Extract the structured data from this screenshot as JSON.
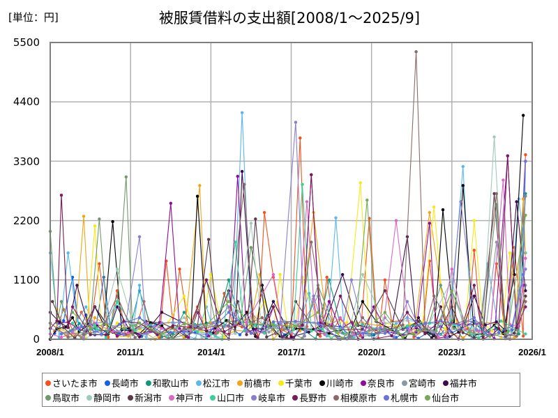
{
  "header": {
    "unit_label": "[単位：円]",
    "title": "被服賃借料の支出額[2008/1～2025/9]"
  },
  "axes": {
    "y_ticks": [
      "5500",
      "4400",
      "3300",
      "2200",
      "1100",
      "0"
    ],
    "x_ticks": [
      "2008/1",
      "2011/1",
      "2014/1",
      "2017/1",
      "2020/1",
      "2023/1",
      "2026/1"
    ]
  },
  "legend": {
    "row1": [
      {
        "label": "さいたま市",
        "color": "#f4511e"
      },
      {
        "label": "長崎市",
        "color": "#1a5fe0"
      },
      {
        "label": "和歌山市",
        "color": "#12997a"
      },
      {
        "label": "松江市",
        "color": "#5bb8ef"
      },
      {
        "label": "前橋市",
        "color": "#f2a516"
      },
      {
        "label": "千葉市",
        "color": "#f7e81a"
      },
      {
        "label": "川崎市",
        "color": "#000000"
      },
      {
        "label": "奈良市",
        "color": "#8f0a9a"
      },
      {
        "label": "宮崎市",
        "color": "#8c98a6"
      },
      {
        "label": "福井市",
        "color": "#3b0a4a"
      }
    ],
    "row2": [
      {
        "label": "鳥取市",
        "color": "#6f9a6a"
      },
      {
        "label": "静岡市",
        "color": "#9fcab8"
      },
      {
        "label": "新潟市",
        "color": "#5a3a4a"
      },
      {
        "label": "神戸市",
        "color": "#d86ac6"
      },
      {
        "label": "山口市",
        "color": "#3ccf98"
      },
      {
        "label": "岐阜市",
        "color": "#8a7ed0"
      },
      {
        "label": "長野市",
        "color": "#7a1a5a"
      },
      {
        "label": "相模原市",
        "color": "#8c6a6a"
      },
      {
        "label": "札幌市",
        "color": "#6a72dc"
      },
      {
        "label": "仙台市",
        "color": "#78aa56"
      }
    ]
  },
  "chart_data": {
    "type": "line",
    "title": "被服賃借料の支出額[2008/1～2025/9]",
    "xlabel": "",
    "ylabel": "[単位：円]",
    "ylim": [
      0,
      5500
    ],
    "y_ticks": [
      0,
      1100,
      2200,
      3300,
      4400,
      5500
    ],
    "x_range": [
      "2008/1",
      "2026/1"
    ],
    "x_ticks": [
      "2008/1",
      "2011/1",
      "2014/1",
      "2017/1",
      "2020/1",
      "2023/1",
      "2026/1"
    ],
    "grid": true,
    "legend_position": "bottom",
    "note": "Monthly series per city; values estimated from pixel positions. Points listed as [month_index_from_2008/1, value]. Unlisted months are low (roughly 0–400).",
    "series": [
      {
        "name": "さいたま市",
        "color": "#f4511e",
        "points": [
          [
            2,
            150
          ],
          [
            6,
            550
          ],
          [
            14,
            500
          ],
          [
            22,
            1400
          ],
          [
            30,
            900
          ],
          [
            42,
            700
          ],
          [
            52,
            1450
          ],
          [
            58,
            1300
          ],
          [
            66,
            600
          ],
          [
            78,
            850
          ],
          [
            90,
            700
          ],
          [
            96,
            2350
          ],
          [
            100,
            1150
          ],
          [
            112,
            3730
          ],
          [
            118,
            750
          ],
          [
            124,
            1150
          ],
          [
            130,
            380
          ],
          [
            143,
            2240
          ],
          [
            150,
            1100
          ],
          [
            160,
            400
          ],
          [
            170,
            1450
          ],
          [
            180,
            900
          ],
          [
            190,
            1650
          ],
          [
            200,
            1400
          ],
          [
            208,
            1700
          ],
          [
            212,
            60
          ],
          [
            213,
            3420
          ],
          [
            212,
            2600
          ]
        ]
      },
      {
        "name": "長崎市",
        "color": "#1a5fe0",
        "points": [
          [
            2,
            110
          ],
          [
            10,
            1150
          ],
          [
            16,
            450
          ],
          [
            24,
            1150
          ],
          [
            34,
            200
          ],
          [
            60,
            150
          ],
          [
            80,
            250
          ],
          [
            100,
            300
          ],
          [
            120,
            200
          ],
          [
            140,
            180
          ],
          [
            160,
            150
          ],
          [
            180,
            120
          ],
          [
            200,
            200
          ],
          [
            210,
            900
          ],
          [
            213,
            3300
          ]
        ]
      },
      {
        "name": "和歌山市",
        "color": "#12997a",
        "points": [
          [
            5,
            100
          ],
          [
            20,
            200
          ],
          [
            40,
            900
          ],
          [
            60,
            500
          ],
          [
            80,
            1100
          ],
          [
            100,
            700
          ],
          [
            125,
            1100
          ],
          [
            150,
            200
          ],
          [
            170,
            100
          ],
          [
            190,
            300
          ],
          [
            210,
            100
          ],
          [
            213,
            2700
          ]
        ]
      },
      {
        "name": "松江市",
        "color": "#5bb8ef",
        "points": [
          [
            0,
            1600
          ],
          [
            8,
            1600
          ],
          [
            16,
            600
          ],
          [
            30,
            700
          ],
          [
            40,
            1000
          ],
          [
            50,
            300
          ],
          [
            70,
            600
          ],
          [
            86,
            4200
          ],
          [
            90,
            300
          ],
          [
            116,
            850
          ],
          [
            128,
            2250
          ],
          [
            140,
            200
          ],
          [
            160,
            400
          ],
          [
            185,
            3200
          ],
          [
            196,
            1400
          ],
          [
            210,
            2600
          ],
          [
            213,
            1600
          ]
        ]
      },
      {
        "name": "前橋市",
        "color": "#f2a516",
        "points": [
          [
            4,
            200
          ],
          [
            15,
            2280
          ],
          [
            20,
            400
          ],
          [
            40,
            200
          ],
          [
            67,
            2850
          ],
          [
            72,
            300
          ],
          [
            94,
            1200
          ],
          [
            118,
            2350
          ],
          [
            140,
            300
          ],
          [
            170,
            2350
          ],
          [
            200,
            300
          ],
          [
            212,
            2600
          ],
          [
            213,
            1500
          ]
        ]
      },
      {
        "name": "千葉市",
        "color": "#f7e81a",
        "points": [
          [
            3,
            550
          ],
          [
            20,
            2100
          ],
          [
            30,
            300
          ],
          [
            60,
            800
          ],
          [
            72,
            1200
          ],
          [
            96,
            700
          ],
          [
            103,
            1200
          ],
          [
            113,
            1150
          ],
          [
            139,
            2900
          ],
          [
            150,
            300
          ],
          [
            172,
            2450
          ],
          [
            190,
            2200
          ],
          [
            206,
            1600
          ],
          [
            213,
            800
          ]
        ]
      },
      {
        "name": "川崎市",
        "color": "#000000",
        "points": [
          [
            0,
            0
          ],
          [
            10,
            400
          ],
          [
            20,
            600
          ],
          [
            28,
            2180
          ],
          [
            40,
            100
          ],
          [
            60,
            200
          ],
          [
            66,
            2650
          ],
          [
            74,
            200
          ],
          [
            88,
            500
          ],
          [
            95,
            1000
          ],
          [
            110,
            200
          ],
          [
            140,
            700
          ],
          [
            165,
            400
          ],
          [
            176,
            2400
          ],
          [
            185,
            2850
          ],
          [
            194,
            100
          ],
          [
            208,
            1200
          ],
          [
            212,
            4150
          ]
        ]
      },
      {
        "name": "奈良市",
        "color": "#8f0a9a",
        "points": [
          [
            4,
            300
          ],
          [
            20,
            600
          ],
          [
            40,
            100
          ],
          [
            54,
            2520
          ],
          [
            66,
            500
          ],
          [
            84,
            3020
          ],
          [
            100,
            600
          ],
          [
            117,
            3050
          ],
          [
            125,
            700
          ],
          [
            145,
            600
          ],
          [
            170,
            2150
          ],
          [
            180,
            300
          ],
          [
            205,
            3400
          ],
          [
            212,
            1000
          ]
        ]
      },
      {
        "name": "宮崎市",
        "color": "#8c98a6",
        "points": [
          [
            0,
            200
          ],
          [
            30,
            150
          ],
          [
            60,
            300
          ],
          [
            90,
            500
          ],
          [
            120,
            800
          ],
          [
            150,
            400
          ],
          [
            180,
            900
          ],
          [
            200,
            1800
          ],
          [
            213,
            1000
          ]
        ]
      },
      {
        "name": "福井市",
        "color": "#3b0a4a",
        "points": [
          [
            0,
            500
          ],
          [
            12,
            1000
          ],
          [
            30,
            600
          ],
          [
            50,
            500
          ],
          [
            80,
            900
          ],
          [
            86,
            3110
          ],
          [
            100,
            700
          ],
          [
            131,
            1200
          ],
          [
            160,
            1900
          ],
          [
            175,
            600
          ],
          [
            190,
            800
          ],
          [
            209,
            2550
          ],
          [
            213,
            900
          ]
        ]
      },
      {
        "name": "鳥取市",
        "color": "#6f9a6a",
        "points": [
          [
            0,
            2000
          ],
          [
            5,
            700
          ],
          [
            22,
            2230
          ],
          [
            30,
            700
          ],
          [
            34,
            3010
          ],
          [
            40,
            400
          ],
          [
            70,
            1100
          ],
          [
            90,
            1700
          ],
          [
            120,
            1000
          ],
          [
            150,
            200
          ],
          [
            175,
            1000
          ],
          [
            200,
            2500
          ],
          [
            213,
            2650
          ]
        ]
      },
      {
        "name": "静岡市",
        "color": "#9fcab8",
        "points": [
          [
            0,
            300
          ],
          [
            30,
            1300
          ],
          [
            60,
            400
          ],
          [
            90,
            2150
          ],
          [
            110,
            300
          ],
          [
            140,
            1200
          ],
          [
            180,
            1100
          ],
          [
            199,
            3750
          ],
          [
            213,
            2300
          ]
        ]
      },
      {
        "name": "新潟市",
        "color": "#5a3a4a",
        "points": [
          [
            1,
            700
          ],
          [
            20,
            600
          ],
          [
            50,
            300
          ],
          [
            71,
            1850
          ],
          [
            84,
            700
          ],
          [
            92,
            2230
          ],
          [
            110,
            700
          ],
          [
            150,
            900
          ],
          [
            180,
            600
          ],
          [
            199,
            2700
          ],
          [
            213,
            800
          ]
        ]
      },
      {
        "name": "神戸市",
        "color": "#d86ac6",
        "points": [
          [
            0,
            100
          ],
          [
            20,
            300
          ],
          [
            50,
            200
          ],
          [
            100,
            1200
          ],
          [
            115,
            2550
          ],
          [
            130,
            400
          ],
          [
            155,
            2200
          ],
          [
            180,
            1300
          ],
          [
            203,
            2950
          ],
          [
            213,
            1500
          ]
        ]
      },
      {
        "name": "山口市",
        "color": "#3ccf98",
        "points": [
          [
            10,
            300
          ],
          [
            30,
            700
          ],
          [
            60,
            200
          ],
          [
            83,
            1800
          ],
          [
            100,
            300
          ],
          [
            113,
            2870
          ],
          [
            130,
            200
          ],
          [
            170,
            300
          ],
          [
            213,
            100
          ]
        ]
      },
      {
        "name": "岐阜市",
        "color": "#8a7ed0",
        "points": [
          [
            10,
            150
          ],
          [
            40,
            1900
          ],
          [
            50,
            300
          ],
          [
            80,
            600
          ],
          [
            110,
            4020
          ],
          [
            118,
            800
          ],
          [
            135,
            1100
          ],
          [
            160,
            700
          ],
          [
            184,
            2550
          ],
          [
            213,
            1300
          ]
        ]
      },
      {
        "name": "長野市",
        "color": "#7a1a5a",
        "points": [
          [
            0,
            200
          ],
          [
            5,
            2670
          ],
          [
            10,
            600
          ],
          [
            40,
            300
          ],
          [
            70,
            1100
          ],
          [
            100,
            600
          ],
          [
            117,
            3050
          ],
          [
            130,
            800
          ],
          [
            160,
            500
          ],
          [
            190,
            1000
          ],
          [
            205,
            3400
          ],
          [
            213,
            600
          ]
        ]
      },
      {
        "name": "相模原市",
        "color": "#8c6a6a",
        "points": [
          [
            0,
            300
          ],
          [
            30,
            800
          ],
          [
            60,
            200
          ],
          [
            87,
            2870
          ],
          [
            95,
            400
          ],
          [
            117,
            1800
          ],
          [
            140,
            400
          ],
          [
            164,
            5330
          ],
          [
            172,
            800
          ],
          [
            200,
            2700
          ],
          [
            213,
            700
          ]
        ]
      },
      {
        "name": "札幌市",
        "color": "#6a72dc",
        "points": [
          [
            5,
            100
          ],
          [
            40,
            400
          ],
          [
            80,
            500
          ],
          [
            120,
            300
          ],
          [
            160,
            200
          ],
          [
            190,
            400
          ],
          [
            212,
            1200
          ],
          [
            213,
            3300
          ]
        ]
      },
      {
        "name": "仙台市",
        "color": "#78aa56",
        "points": [
          [
            10,
            500
          ],
          [
            40,
            300
          ],
          [
            80,
            700
          ],
          [
            120,
            500
          ],
          [
            142,
            2580
          ],
          [
            150,
            500
          ],
          [
            180,
            900
          ],
          [
            213,
            2300
          ]
        ]
      }
    ]
  }
}
